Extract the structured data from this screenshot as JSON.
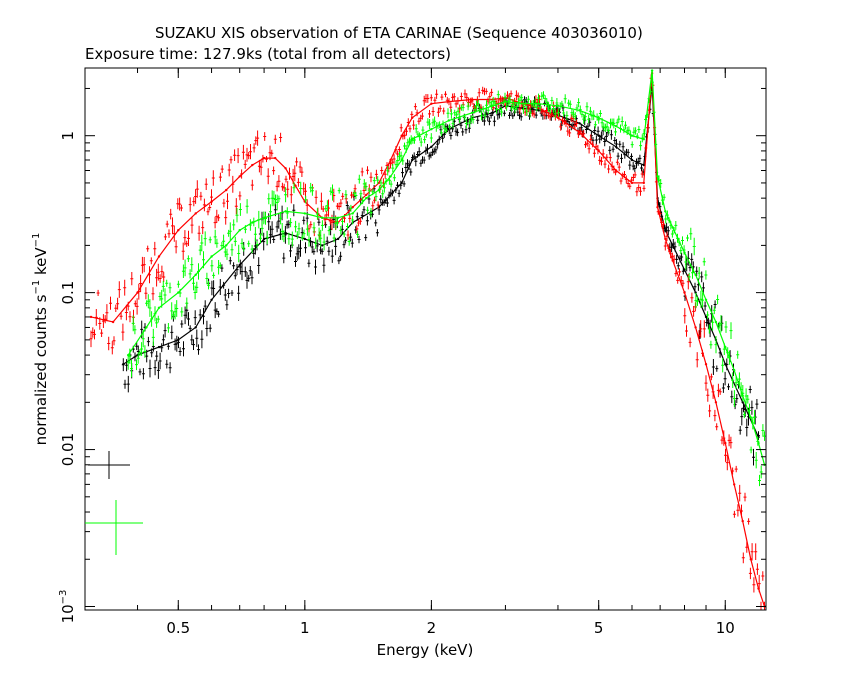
{
  "chart_data": {
    "type": "line",
    "title": "SUZAKU XIS observation of ETA CARINAE (Sequence 403036010)",
    "subtitle": "Exposure time: 127.9ks (total from all detectors)",
    "xlabel": "Energy (keV)",
    "ylabel_main": "normalized counts s",
    "ylabel_sup1": "−1",
    "ylabel_mid": " keV",
    "ylabel_sup2": "−1",
    "x_scale": "log",
    "y_scale": "log",
    "xlim": [
      0.3,
      12.5
    ],
    "ylim": [
      0.00095,
      2.7
    ],
    "x_ticks": [
      {
        "v": 0.5,
        "label": "0.5"
      },
      {
        "v": 1,
        "label": "1"
      },
      {
        "v": 2,
        "label": "2"
      },
      {
        "v": 5,
        "label": "5"
      },
      {
        "v": 10,
        "label": "10"
      }
    ],
    "y_ticks": [
      {
        "v": 1,
        "label": "1"
      },
      {
        "v": 0.1,
        "label": "0.1"
      },
      {
        "v": 0.01,
        "label": "0.01"
      },
      {
        "v": 0.001,
        "label": "10",
        "sup": "−3"
      }
    ],
    "series": [
      {
        "color": "#000000",
        "x": [
          0.37,
          0.4,
          0.45,
          0.5,
          0.55,
          0.6,
          0.7,
          0.8,
          0.9,
          1.0,
          1.1,
          1.2,
          1.3,
          1.5,
          1.7,
          1.8,
          2.0,
          2.2,
          2.5,
          2.8,
          3.0,
          3.3,
          3.6,
          4.0,
          4.5,
          5.0,
          5.5,
          6.0,
          6.4,
          6.7,
          6.9,
          7.2,
          7.5,
          8.0,
          8.5,
          9.0,
          9.5,
          10.0,
          11.0,
          12.0
        ],
        "y": [
          0.035,
          0.04,
          0.045,
          0.05,
          0.06,
          0.09,
          0.15,
          0.22,
          0.24,
          0.22,
          0.2,
          0.22,
          0.28,
          0.35,
          0.5,
          0.7,
          0.85,
          1.1,
          1.3,
          1.4,
          1.55,
          1.5,
          1.45,
          1.35,
          1.2,
          1.0,
          0.85,
          0.7,
          0.65,
          2.1,
          0.4,
          0.25,
          0.2,
          0.14,
          0.1,
          0.07,
          0.05,
          0.035,
          0.02,
          0.012
        ]
      },
      {
        "color": "#ff0000",
        "x": [
          0.31,
          0.35,
          0.4,
          0.45,
          0.5,
          0.55,
          0.6,
          0.65,
          0.7,
          0.75,
          0.8,
          0.85,
          0.9,
          0.95,
          1.0,
          1.1,
          1.2,
          1.3,
          1.4,
          1.5,
          1.6,
          1.7,
          1.8,
          2.0,
          2.2,
          2.5,
          2.8,
          3.0,
          3.3,
          3.6,
          4.0,
          4.5,
          5.0,
          5.5,
          6.0,
          6.4,
          6.7,
          6.9,
          7.2,
          7.5,
          8.0,
          8.5,
          9.0,
          9.5,
          10.0,
          10.5,
          11.0,
          11.5,
          12.0,
          12.4
        ],
        "y": [
          0.07,
          0.065,
          0.1,
          0.17,
          0.25,
          0.32,
          0.38,
          0.45,
          0.55,
          0.65,
          0.72,
          0.72,
          0.62,
          0.48,
          0.38,
          0.3,
          0.28,
          0.35,
          0.42,
          0.5,
          0.7,
          1.0,
          1.3,
          1.6,
          1.65,
          1.7,
          1.7,
          1.75,
          1.6,
          1.5,
          1.3,
          1.05,
          0.8,
          0.6,
          0.5,
          0.5,
          2.5,
          0.35,
          0.22,
          0.16,
          0.1,
          0.06,
          0.035,
          0.02,
          0.011,
          0.006,
          0.0035,
          0.002,
          0.0013,
          0.001
        ]
      },
      {
        "color": "#00ff00",
        "x": [
          0.38,
          0.42,
          0.45,
          0.5,
          0.55,
          0.6,
          0.65,
          0.7,
          0.75,
          0.8,
          0.9,
          1.0,
          1.1,
          1.2,
          1.3,
          1.4,
          1.5,
          1.6,
          1.7,
          1.8,
          2.0,
          2.2,
          2.5,
          2.8,
          3.0,
          3.3,
          3.6,
          4.0,
          4.5,
          5.0,
          5.5,
          6.0,
          6.4,
          6.7,
          6.9,
          7.2,
          7.5,
          8.0,
          8.5,
          9.0,
          9.5,
          10.0,
          10.5,
          11.0,
          11.5,
          12.0,
          12.4
        ],
        "y": [
          0.04,
          0.06,
          0.08,
          0.1,
          0.13,
          0.17,
          0.2,
          0.25,
          0.28,
          0.3,
          0.33,
          0.32,
          0.3,
          0.3,
          0.32,
          0.4,
          0.45,
          0.55,
          0.7,
          0.95,
          1.1,
          1.25,
          1.4,
          1.55,
          1.65,
          1.6,
          1.6,
          1.55,
          1.45,
          1.3,
          1.15,
          1.0,
          0.95,
          2.6,
          0.55,
          0.33,
          0.26,
          0.18,
          0.13,
          0.09,
          0.065,
          0.045,
          0.032,
          0.022,
          0.016,
          0.011,
          0.008
        ]
      }
    ]
  }
}
